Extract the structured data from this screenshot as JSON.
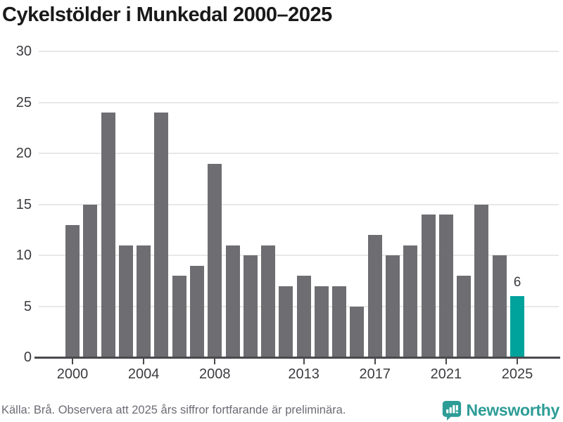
{
  "title": "Cykelstölder i Munkedal 2000–2025",
  "source_note": "Källa: Brå. Observera att 2025 års siffror fortfarande är preliminära.",
  "branding": {
    "name": "Newsworthy",
    "icon": "newsworthy-speech-bubble-chart-icon"
  },
  "colors": {
    "bar": "#6e6e72",
    "highlight": "#00a29c",
    "grid": "#e8e8e8",
    "axis": "#4a4a4e",
    "tick_text": "#3c3c40",
    "muted_text": "#6c6c75",
    "brand": "#2d9c96",
    "title_text": "#1a1a1a"
  },
  "chart_data": {
    "type": "bar",
    "title": "Cykelstölder i Munkedal 2000–2025",
    "x": [
      2000,
      2001,
      2002,
      2003,
      2004,
      2005,
      2006,
      2007,
      2008,
      2009,
      2010,
      2011,
      2012,
      2013,
      2014,
      2015,
      2016,
      2017,
      2018,
      2019,
      2020,
      2021,
      2022,
      2023,
      2024,
      2025
    ],
    "values": [
      13,
      15,
      24,
      11,
      11,
      24,
      8,
      9,
      19,
      11,
      10,
      11,
      7,
      8,
      7,
      7,
      5,
      12,
      10,
      11,
      14,
      14,
      8,
      15,
      10,
      6
    ],
    "highlight_index": 25,
    "data_labels": [
      {
        "index": 25,
        "text": "6"
      }
    ],
    "xticks": [
      2000,
      2004,
      2008,
      2013,
      2017,
      2021,
      2025
    ],
    "yticks": [
      0,
      5,
      10,
      15,
      20,
      25,
      30
    ],
    "ylim": [
      0,
      30
    ],
    "xlabel": "",
    "ylabel": "",
    "grid": "horizontal",
    "legend": "none"
  }
}
